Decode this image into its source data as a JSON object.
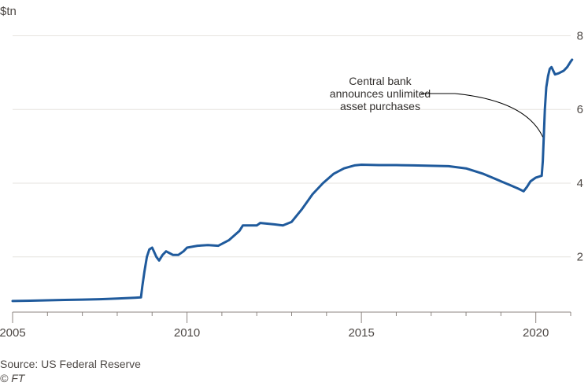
{
  "chart_data": {
    "type": "line",
    "unit_label": "$tn",
    "xlim": [
      2005.0,
      2021.0
    ],
    "ylim": [
      0.5,
      8.5
    ],
    "x_ticks": [
      2005,
      2010,
      2015,
      2020
    ],
    "y_ticks": [
      2,
      4,
      6,
      8
    ],
    "grid": "horizontal",
    "colors": {
      "series": "#1f5a9c",
      "annotation": "#000000"
    },
    "series": [
      {
        "points": [
          [
            2005.0,
            0.8
          ],
          [
            2005.5,
            0.81
          ],
          [
            2006.0,
            0.82
          ],
          [
            2006.5,
            0.83
          ],
          [
            2007.0,
            0.84
          ],
          [
            2007.5,
            0.85
          ],
          [
            2008.0,
            0.87
          ],
          [
            2008.5,
            0.89
          ],
          [
            2008.68,
            0.9
          ],
          [
            2008.72,
            1.2
          ],
          [
            2008.78,
            1.6
          ],
          [
            2008.85,
            2.0
          ],
          [
            2008.92,
            2.2
          ],
          [
            2009.0,
            2.25
          ],
          [
            2009.05,
            2.15
          ],
          [
            2009.12,
            2.0
          ],
          [
            2009.2,
            1.9
          ],
          [
            2009.3,
            2.05
          ],
          [
            2009.4,
            2.15
          ],
          [
            2009.5,
            2.1
          ],
          [
            2009.6,
            2.05
          ],
          [
            2009.75,
            2.05
          ],
          [
            2009.9,
            2.15
          ],
          [
            2010.0,
            2.25
          ],
          [
            2010.3,
            2.3
          ],
          [
            2010.6,
            2.32
          ],
          [
            2010.9,
            2.3
          ],
          [
            2011.2,
            2.45
          ],
          [
            2011.5,
            2.7
          ],
          [
            2011.6,
            2.85
          ],
          [
            2011.8,
            2.85
          ],
          [
            2012.0,
            2.85
          ],
          [
            2012.1,
            2.92
          ],
          [
            2012.3,
            2.9
          ],
          [
            2012.5,
            2.88
          ],
          [
            2012.75,
            2.85
          ],
          [
            2013.0,
            2.95
          ],
          [
            2013.3,
            3.3
          ],
          [
            2013.6,
            3.7
          ],
          [
            2013.9,
            4.0
          ],
          [
            2014.2,
            4.25
          ],
          [
            2014.5,
            4.4
          ],
          [
            2014.8,
            4.48
          ],
          [
            2015.0,
            4.5
          ],
          [
            2015.5,
            4.49
          ],
          [
            2016.0,
            4.49
          ],
          [
            2016.5,
            4.48
          ],
          [
            2017.0,
            4.47
          ],
          [
            2017.5,
            4.46
          ],
          [
            2018.0,
            4.4
          ],
          [
            2018.5,
            4.25
          ],
          [
            2018.75,
            4.15
          ],
          [
            2019.0,
            4.05
          ],
          [
            2019.25,
            3.95
          ],
          [
            2019.5,
            3.85
          ],
          [
            2019.65,
            3.78
          ],
          [
            2019.75,
            3.9
          ],
          [
            2019.85,
            4.05
          ],
          [
            2020.0,
            4.15
          ],
          [
            2020.17,
            4.2
          ],
          [
            2020.2,
            4.6
          ],
          [
            2020.23,
            5.3
          ],
          [
            2020.26,
            6.0
          ],
          [
            2020.3,
            6.6
          ],
          [
            2020.35,
            6.9
          ],
          [
            2020.4,
            7.1
          ],
          [
            2020.45,
            7.15
          ],
          [
            2020.55,
            6.95
          ],
          [
            2020.65,
            6.98
          ],
          [
            2020.8,
            7.05
          ],
          [
            2020.9,
            7.15
          ],
          [
            2021.0,
            7.3
          ],
          [
            2021.04,
            7.35
          ]
        ]
      }
    ],
    "annotation": {
      "lines": [
        "Central bank",
        "announces unlimited",
        "asset purchases"
      ],
      "x": 2020.2,
      "y": 5.25
    }
  },
  "footer": {
    "source": "Source: US Federal Reserve",
    "credit": "© FT"
  }
}
